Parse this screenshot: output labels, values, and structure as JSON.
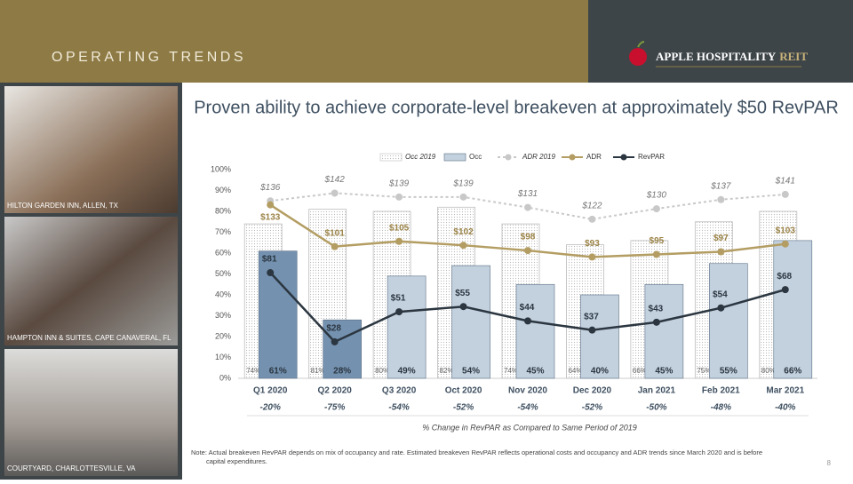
{
  "header": {
    "title": "OPERATING TRENDS",
    "logo": "APPLE HOSPITALITY",
    "logo_suffix": "REIT"
  },
  "photos": [
    {
      "caption": "HILTON GARDEN INN, ALLEN, TX"
    },
    {
      "caption": "HAMPTON INN & SUITES, CAPE CANAVERAL, FL"
    },
    {
      "caption": "COURTYARD, CHARLOTTESVILLE, VA"
    }
  ],
  "chart_data": {
    "type": "bar",
    "title": "Proven ability to achieve corporate-level breakeven at approximately $50 RevPAR",
    "categories": [
      "Q1 2020",
      "Q2 2020",
      "Q3 2020",
      "Oct 2020",
      "Nov 2020",
      "Dec 2020",
      "Jan 2021",
      "Feb 2021",
      "Mar 2021"
    ],
    "change_labels": [
      "-20%",
      "-75%",
      "-54%",
      "-52%",
      "-54%",
      "-52%",
      "-50%",
      "-48%",
      "-40%"
    ],
    "change_title": "% Change in RevPAR as Compared to Same Period of 2019",
    "series": [
      {
        "name": "Occ 2019",
        "kind": "bar",
        "color": "#bdbdbd",
        "values": [
          74,
          81,
          80,
          82,
          74,
          64,
          66,
          75,
          80
        ],
        "value_labels": [
          "74%",
          "81%",
          "80%",
          "82%",
          "74%",
          "64%",
          "66%",
          "75%",
          "80%"
        ]
      },
      {
        "name": "Occ",
        "kind": "bar",
        "color": "#2f4d69",
        "colors": [
          "#7492b0",
          "#7492b0",
          "#c3d1df",
          "#c3d1df",
          "#c3d1df",
          "#c3d1df",
          "#c3d1df",
          "#c3d1df",
          "#c3d1df"
        ],
        "values": [
          61,
          28,
          49,
          54,
          45,
          40,
          45,
          55,
          66
        ],
        "value_labels": [
          "61%",
          "28%",
          "49%",
          "54%",
          "45%",
          "40%",
          "45%",
          "55%",
          "66%"
        ]
      },
      {
        "name": "ADR 2019",
        "kind": "line",
        "dashed": true,
        "axis": "y2",
        "color": "#c8c8c8",
        "values": [
          136,
          142,
          139,
          139,
          131,
          122,
          130,
          137,
          141
        ],
        "value_labels": [
          "$136",
          "$142",
          "$139",
          "$139",
          "$131",
          "$122",
          "$130",
          "$137",
          "$141"
        ]
      },
      {
        "name": "ADR",
        "kind": "line",
        "axis": "y2",
        "color": "#b39d62",
        "values": [
          133,
          101,
          105,
          102,
          98,
          93,
          95,
          97,
          103
        ],
        "value_labels": [
          "$133",
          "$101",
          "$105",
          "$102",
          "$98",
          "$93",
          "$95",
          "$97",
          "$103"
        ]
      },
      {
        "name": "RevPAR",
        "kind": "line",
        "axis": "y2",
        "color": "#2b3640",
        "values": [
          81,
          28,
          51,
          55,
          44,
          37,
          43,
          54,
          68
        ],
        "value_labels": [
          "$81",
          "$28",
          "$51",
          "$55",
          "$44",
          "$37",
          "$43",
          "$54",
          "$68"
        ]
      }
    ],
    "ylim": [
      0,
      100
    ],
    "yticks": [
      {
        "value": 0,
        "label": "0%"
      },
      {
        "value": 10,
        "label": "10%"
      },
      {
        "value": 20,
        "label": "20%"
      },
      {
        "value": 30,
        "label": "30%"
      },
      {
        "value": 40,
        "label": "40%"
      },
      {
        "value": 50,
        "label": "50%"
      },
      {
        "value": 60,
        "label": "60%"
      },
      {
        "value": 70,
        "label": "70%"
      },
      {
        "value": 80,
        "label": "80%"
      },
      {
        "value": 90,
        "label": "90%"
      },
      {
        "value": 100,
        "label": "100%"
      }
    ],
    "y2lim": [
      0,
      160
    ]
  },
  "note": "Note: Actual breakeven RevPAR depends on mix of occupancy and rate. Estimated breakeven RevPAR reflects operational costs and occupancy and ADR trends since March 2020 and is before capital expenditures.",
  "page_number": "8"
}
